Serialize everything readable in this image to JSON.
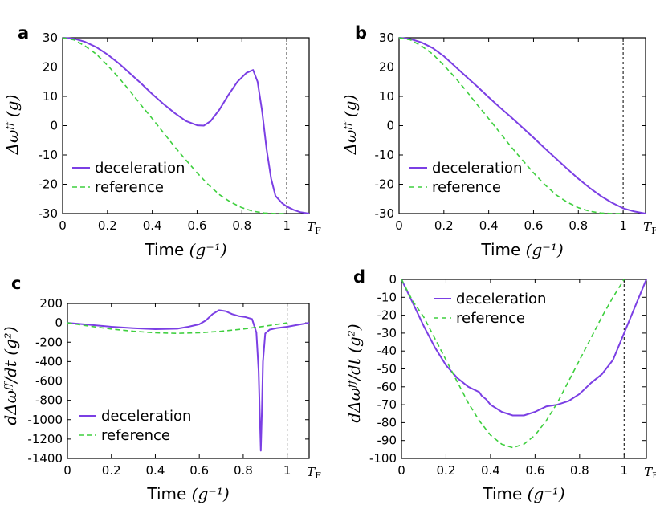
{
  "colors": {
    "deceleration": "#7b3fe4",
    "reference": "#3ecf3e",
    "axes": "#000000",
    "marker": "#000000"
  },
  "chart_data": [
    {
      "panel": "a",
      "type": "line",
      "xlabel": "Time",
      "xunit": "(g⁻¹)",
      "ylabel": "Δω^FF",
      "yunit": "(g)",
      "xlim": [
        0,
        1.1
      ],
      "ylim": [
        -30,
        30
      ],
      "xticks": [
        0,
        0.2,
        0.4,
        0.6,
        0.8,
        1
      ],
      "xtick_labels": [
        "0",
        "0.2",
        "0.4",
        "0.6",
        "0.8",
        "1"
      ],
      "yticks": [
        -30,
        -20,
        -10,
        0,
        10,
        20,
        30
      ],
      "ytick_labels": [
        "-30",
        "-20",
        "-10",
        "0",
        "10",
        "20",
        "30"
      ],
      "end_label": "T_F",
      "marker_x": 1,
      "legend": "lower-left",
      "series": [
        {
          "name": "deceleration",
          "style": "solid",
          "x": [
            0,
            0.05,
            0.1,
            0.15,
            0.2,
            0.25,
            0.3,
            0.35,
            0.4,
            0.45,
            0.5,
            0.55,
            0.6,
            0.63,
            0.66,
            0.7,
            0.74,
            0.78,
            0.82,
            0.85,
            0.87,
            0.89,
            0.91,
            0.93,
            0.95,
            0.98,
            1.0,
            1.03,
            1.06,
            1.1
          ],
          "y": [
            30,
            29.7,
            28.6,
            26.8,
            24.3,
            21.3,
            17.9,
            14.4,
            10.8,
            7.4,
            4.3,
            1.6,
            0.1,
            0.0,
            1.5,
            5.5,
            10.5,
            15,
            18,
            19.0,
            15,
            5,
            -8,
            -18,
            -24,
            -26.5,
            -27.6,
            -28.7,
            -29.5,
            -30
          ]
        },
        {
          "name": "reference",
          "style": "dashed",
          "x": [
            0,
            0.05,
            0.1,
            0.15,
            0.2,
            0.25,
            0.3,
            0.35,
            0.4,
            0.45,
            0.5,
            0.55,
            0.6,
            0.65,
            0.7,
            0.75,
            0.8,
            0.85,
            0.9,
            0.95,
            1.0
          ],
          "y": [
            30,
            29.3,
            27.2,
            24.4,
            20.6,
            16.4,
            11.9,
            7.0,
            2.4,
            -2.4,
            -7.2,
            -11.7,
            -16.1,
            -20.1,
            -23.6,
            -26.1,
            -28.0,
            -29.2,
            -29.8,
            -30,
            -30
          ]
        }
      ]
    },
    {
      "panel": "b",
      "type": "line",
      "xlabel": "Time",
      "xunit": "(g⁻¹)",
      "ylabel": "Δω^FF",
      "yunit": "(g)",
      "xlim": [
        0,
        1.1
      ],
      "ylim": [
        -30,
        30
      ],
      "xticks": [
        0,
        0.2,
        0.4,
        0.6,
        0.8,
        1
      ],
      "xtick_labels": [
        "0",
        "0.2",
        "0.4",
        "0.6",
        "0.8",
        "1"
      ],
      "yticks": [
        -30,
        -20,
        -10,
        0,
        10,
        20,
        30
      ],
      "ytick_labels": [
        "-30",
        "-20",
        "-10",
        "0",
        "10",
        "20",
        "30"
      ],
      "end_label": "T_F",
      "marker_x": 1,
      "legend": "lower-left",
      "series": [
        {
          "name": "deceleration",
          "style": "solid",
          "x": [
            0,
            0.05,
            0.1,
            0.15,
            0.2,
            0.25,
            0.3,
            0.35,
            0.4,
            0.45,
            0.5,
            0.55,
            0.6,
            0.65,
            0.7,
            0.75,
            0.8,
            0.85,
            0.9,
            0.95,
            1.0,
            1.05,
            1.1
          ],
          "y": [
            30,
            29.6,
            28.4,
            26.5,
            23.7,
            20.2,
            16.7,
            13.3,
            9.7,
            6.2,
            2.9,
            -0.6,
            -4.1,
            -7.7,
            -11.2,
            -14.7,
            -18.1,
            -21.2,
            -24.0,
            -26.3,
            -28.2,
            -29.3,
            -30
          ]
        },
        {
          "name": "reference",
          "style": "dashed",
          "x": [
            0,
            0.05,
            0.1,
            0.15,
            0.2,
            0.25,
            0.3,
            0.35,
            0.4,
            0.45,
            0.5,
            0.55,
            0.6,
            0.65,
            0.7,
            0.75,
            0.8,
            0.85,
            0.9,
            0.95,
            1.0
          ],
          "y": [
            30,
            29.3,
            27.2,
            24.4,
            20.6,
            16.4,
            11.9,
            7.0,
            2.4,
            -2.4,
            -7.2,
            -11.7,
            -16.1,
            -20.1,
            -23.6,
            -26.1,
            -28.0,
            -29.2,
            -29.8,
            -30,
            -30
          ]
        }
      ]
    },
    {
      "panel": "c",
      "type": "line",
      "xlabel": "Time",
      "xunit": "(g⁻¹)",
      "ylabel": "dΔω^FF/dt",
      "yunit": "(g²)",
      "xlim": [
        0,
        1.1
      ],
      "ylim": [
        -1400,
        200
      ],
      "xticks": [
        0,
        0.2,
        0.4,
        0.6,
        0.8,
        1
      ],
      "xtick_labels": [
        "0",
        "0.2",
        "0.4",
        "0.6",
        "0.8",
        "1"
      ],
      "yticks": [
        -1400,
        -1200,
        -1000,
        -800,
        -600,
        -400,
        -200,
        0,
        200
      ],
      "ytick_labels": [
        "-1400",
        "-1200",
        "-1000",
        "-800",
        "-600",
        "-400",
        "-200",
        "0",
        "200"
      ],
      "end_label": "T_F",
      "marker_x": 1,
      "legend": "lower-left",
      "series": [
        {
          "name": "deceleration",
          "style": "solid",
          "x": [
            0,
            0.1,
            0.2,
            0.3,
            0.4,
            0.5,
            0.55,
            0.6,
            0.63,
            0.66,
            0.69,
            0.72,
            0.75,
            0.78,
            0.81,
            0.84,
            0.86,
            0.87,
            0.875,
            0.88,
            0.885,
            0.89,
            0.9,
            0.92,
            0.95,
            1.0,
            1.05,
            1.1
          ],
          "y": [
            0,
            -20,
            -40,
            -55,
            -65,
            -60,
            -40,
            -15,
            25,
            90,
            130,
            120,
            90,
            70,
            60,
            40,
            -100,
            -500,
            -900,
            -1320,
            -900,
            -400,
            -110,
            -70,
            -55,
            -40,
            -20,
            0
          ]
        },
        {
          "name": "reference",
          "style": "dashed",
          "x": [
            0,
            0.1,
            0.2,
            0.3,
            0.4,
            0.5,
            0.6,
            0.7,
            0.8,
            0.9,
            1.0
          ],
          "y": [
            0,
            -34,
            -64,
            -87,
            -103,
            -108,
            -103,
            -87,
            -64,
            -34,
            0
          ]
        }
      ]
    },
    {
      "panel": "d",
      "type": "line",
      "xlabel": "Time",
      "xunit": "(g⁻¹)",
      "ylabel": "dΔω^FF/dt",
      "yunit": "(g²)",
      "xlim": [
        0,
        1.1
      ],
      "ylim": [
        -100,
        0
      ],
      "xticks": [
        0,
        0.2,
        0.4,
        0.6,
        0.8,
        1
      ],
      "xtick_labels": [
        "0",
        "0.2",
        "0.4",
        "0.6",
        "0.8",
        "1"
      ],
      "yticks": [
        -100,
        -90,
        -80,
        -70,
        -60,
        -50,
        -40,
        -30,
        -20,
        -10,
        0
      ],
      "ytick_labels": [
        "-100",
        "-90",
        "-80",
        "-70",
        "-60",
        "-50",
        "-40",
        "-30",
        "-20",
        "-10",
        "0"
      ],
      "end_label": "T_F",
      "marker_x": 1,
      "legend": "top-left",
      "series": [
        {
          "name": "deceleration",
          "style": "solid",
          "x": [
            0,
            0.05,
            0.1,
            0.15,
            0.2,
            0.25,
            0.3,
            0.35,
            0.36,
            0.38,
            0.4,
            0.45,
            0.5,
            0.55,
            0.6,
            0.65,
            0.7,
            0.75,
            0.8,
            0.85,
            0.9,
            0.95,
            1.0,
            1.05,
            1.1
          ],
          "y": [
            0,
            -13,
            -26,
            -38,
            -48,
            -55,
            -60,
            -63,
            -65,
            -67,
            -70,
            -74,
            -76,
            -76,
            -74,
            -71,
            -70,
            -68,
            -64,
            -58,
            -53,
            -45,
            -30,
            -15,
            0
          ]
        },
        {
          "name": "reference",
          "style": "dashed",
          "x": [
            0,
            0.05,
            0.1,
            0.15,
            0.2,
            0.25,
            0.3,
            0.35,
            0.4,
            0.45,
            0.5,
            0.55,
            0.6,
            0.65,
            0.7,
            0.75,
            0.8,
            0.85,
            0.9,
            0.95,
            1.0
          ],
          "y": [
            0,
            -12,
            -21,
            -33,
            -45,
            -57,
            -69,
            -79,
            -87,
            -92,
            -94,
            -92,
            -87,
            -79,
            -69,
            -57,
            -45,
            -33,
            -21,
            -10,
            0
          ]
        }
      ]
    }
  ]
}
